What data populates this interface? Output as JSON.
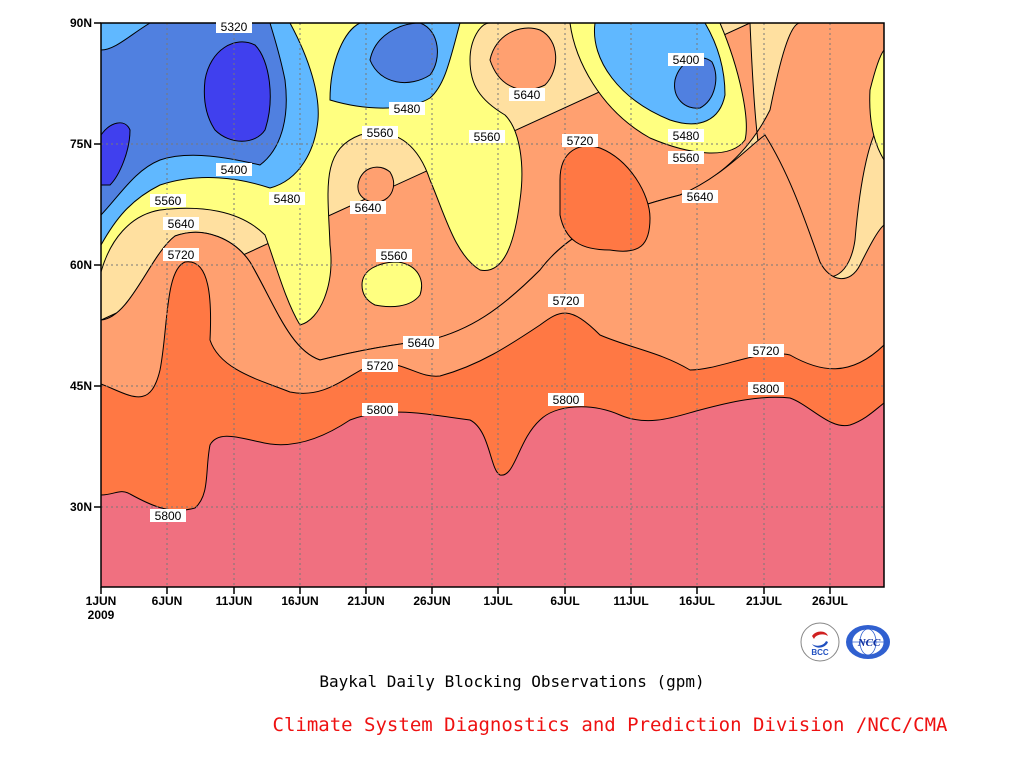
{
  "chart_data": {
    "type": "heatmap",
    "subtype": "filled-contour",
    "title": "Baykal Daily Blocking Observations (gpm)",
    "xlabel": "",
    "ylabel": "",
    "year_label": "2009",
    "x_tick_labels": [
      "1JUN",
      "6JUN",
      "11JUN",
      "16JUN",
      "21JUN",
      "26JUN",
      "1JUL",
      "6JUL",
      "11JUL",
      "16JUL",
      "21JUL",
      "26JUL"
    ],
    "y_tick_labels": [
      "30N",
      "45N",
      "60N",
      "75N",
      "90N"
    ],
    "ylim_deg": [
      20,
      90
    ],
    "grid": true,
    "contour_levels": [
      5320,
      5400,
      5480,
      5560,
      5640,
      5720,
      5800
    ],
    "colors": {
      "below_5320": "#4040ee",
      "5320_5400": "#5080e0",
      "5400_5480": "#60b8ff",
      "5480_5560": "#ffff80",
      "5560_5640": "#ffe0a0",
      "5640_5720": "#ffa070",
      "5720_5800": "#ff7844",
      "above_5800": "#f07080"
    },
    "contour_labels": [
      {
        "text": "5320"
      },
      {
        "text": "5400"
      },
      {
        "text": "5400"
      },
      {
        "text": "5480"
      },
      {
        "text": "5480"
      },
      {
        "text": "5480"
      },
      {
        "text": "5560"
      },
      {
        "text": "5560"
      },
      {
        "text": "5560"
      },
      {
        "text": "5560"
      },
      {
        "text": "5560"
      },
      {
        "text": "5640"
      },
      {
        "text": "5640"
      },
      {
        "text": "5640"
      },
      {
        "text": "5640"
      },
      {
        "text": "5640"
      },
      {
        "text": "5720"
      },
      {
        "text": "5720"
      },
      {
        "text": "5720"
      },
      {
        "text": "5720"
      },
      {
        "text": "5720"
      },
      {
        "text": "5800"
      },
      {
        "text": "5800"
      },
      {
        "text": "5800"
      },
      {
        "text": "5800"
      }
    ]
  },
  "credit": "Climate System Diagnostics and Prediction Division /NCC/CMA",
  "logos": {
    "bcc": {
      "text": "BCC",
      "icon": "bcc-logo-icon"
    },
    "ncc": {
      "text": "NCC",
      "icon": "ncc-logo-icon"
    }
  }
}
